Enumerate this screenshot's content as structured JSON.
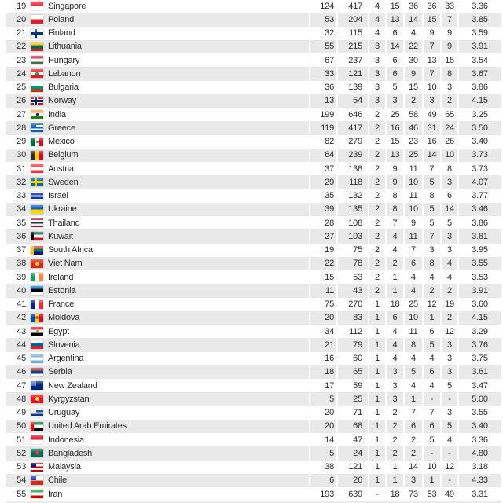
{
  "colors": {
    "row_stripe": "#e9e9e9",
    "row_plain": "#ffffff",
    "text": "#2b2b2b",
    "column_separator": "#ffffff"
  },
  "table": {
    "rows": [
      {
        "rank": 19,
        "country": "Singapore",
        "flag": {
          "type": "h",
          "stripes": [
            "#ED2939",
            "#FFFFFF"
          ]
        },
        "values": [
          "124",
          "417",
          "4",
          "15",
          "36",
          "36",
          "33",
          "3.36"
        ]
      },
      {
        "rank": 20,
        "country": "Poland",
        "flag": {
          "type": "h",
          "stripes": [
            "#FFFFFF",
            "#D22630"
          ]
        },
        "values": [
          "53",
          "204",
          "4",
          "13",
          "14",
          "15",
          "7",
          "3.85"
        ]
      },
      {
        "rank": 21,
        "country": "Finland",
        "flag": {
          "type": "cross",
          "bg": "#FFFFFF",
          "cross": "#003580"
        },
        "values": [
          "32",
          "115",
          "4",
          "6",
          "4",
          "9",
          "9",
          "3.59"
        ]
      },
      {
        "rank": 22,
        "country": "Lithuania",
        "flag": {
          "type": "h",
          "stripes": [
            "#FDB913",
            "#006A44",
            "#C1272D"
          ]
        },
        "values": [
          "55",
          "215",
          "3",
          "14",
          "22",
          "7",
          "9",
          "3.91"
        ]
      },
      {
        "rank": 23,
        "country": "Hungary",
        "flag": {
          "type": "h",
          "stripes": [
            "#CE2939",
            "#FFFFFF",
            "#477050"
          ]
        },
        "values": [
          "67",
          "237",
          "3",
          "6",
          "30",
          "13",
          "15",
          "3.54"
        ]
      },
      {
        "rank": 24,
        "country": "Lebanon",
        "flag": {
          "type": "h",
          "stripes": [
            "#EE161F",
            "#FFFFFF",
            "#EE161F"
          ],
          "dot": "#00A651",
          "dotSize": 4
        },
        "values": [
          "33",
          "121",
          "3",
          "6",
          "9",
          "7",
          "8",
          "3.67"
        ]
      },
      {
        "rank": 25,
        "country": "Bulgaria",
        "flag": {
          "type": "h",
          "stripes": [
            "#FFFFFF",
            "#00966E",
            "#D62612"
          ]
        },
        "values": [
          "36",
          "139",
          "3",
          "5",
          "15",
          "10",
          "3",
          "3.86"
        ]
      },
      {
        "rank": 26,
        "country": "Norway",
        "flag": {
          "type": "cross",
          "bg": "#BA0C2F",
          "cross": "#00205B",
          "outline": "#FFFFFF"
        },
        "values": [
          "13",
          "54",
          "3",
          "3",
          "2",
          "3",
          "2",
          "4.15"
        ]
      },
      {
        "rank": 27,
        "country": "India",
        "flag": {
          "type": "h",
          "stripes": [
            "#FF9933",
            "#FFFFFF",
            "#138808"
          ],
          "dot": "#000080",
          "dotSize": 3
        },
        "values": [
          "199",
          "646",
          "2",
          "25",
          "58",
          "49",
          "65",
          "3.25"
        ]
      },
      {
        "rank": 28,
        "country": "Greece",
        "flag": {
          "type": "h",
          "stripes": [
            "#0D5EAF",
            "#FFFFFF",
            "#0D5EAF",
            "#FFFFFF",
            "#0D5EAF"
          ],
          "canton": "#0D5EAF"
        },
        "values": [
          "119",
          "417",
          "2",
          "16",
          "46",
          "31",
          "24",
          "3.50"
        ]
      },
      {
        "rank": 29,
        "country": "Mexico",
        "flag": {
          "type": "v",
          "stripes": [
            "#006847",
            "#FFFFFF",
            "#CE1126"
          ],
          "dot": "#9C6B30",
          "dotSize": 3
        },
        "values": [
          "82",
          "279",
          "2",
          "15",
          "23",
          "16",
          "26",
          "3.40"
        ]
      },
      {
        "rank": 30,
        "country": "Belgium",
        "flag": {
          "type": "v",
          "stripes": [
            "#2D2926",
            "#FFCD00",
            "#C8102E"
          ]
        },
        "values": [
          "64",
          "239",
          "2",
          "13",
          "25",
          "14",
          "10",
          "3.73"
        ]
      },
      {
        "rank": 31,
        "country": "Austria",
        "flag": {
          "type": "h",
          "stripes": [
            "#EF3340",
            "#FFFFFF",
            "#EF3340"
          ]
        },
        "values": [
          "37",
          "138",
          "2",
          "9",
          "11",
          "7",
          "8",
          "3.73"
        ]
      },
      {
        "rank": 32,
        "country": "Sweden",
        "flag": {
          "type": "cross",
          "bg": "#006AA7",
          "cross": "#FECC02"
        },
        "values": [
          "29",
          "118",
          "2",
          "9",
          "10",
          "5",
          "3",
          "4.07"
        ]
      },
      {
        "rank": 33,
        "country": "Israel",
        "flag": {
          "type": "h",
          "stripes": [
            "#FFFFFF",
            "#0038B8",
            "#FFFFFF",
            "#0038B8",
            "#FFFFFF"
          ]
        },
        "values": [
          "35",
          "132",
          "2",
          "8",
          "11",
          "8",
          "6",
          "3.77"
        ]
      },
      {
        "rank": 34,
        "country": "Ukraine",
        "flag": {
          "type": "h",
          "stripes": [
            "#005BBB",
            "#FFD500"
          ]
        },
        "values": [
          "39",
          "135",
          "2",
          "8",
          "10",
          "5",
          "14",
          "3.46"
        ]
      },
      {
        "rank": 35,
        "country": "Thailand",
        "flag": {
          "type": "h",
          "stripes": [
            "#A51931",
            "#F4F5F8",
            "#2D2A4A",
            "#F4F5F8",
            "#A51931"
          ]
        },
        "values": [
          "28",
          "108",
          "2",
          "7",
          "9",
          "5",
          "5",
          "3.86"
        ]
      },
      {
        "rank": 36,
        "country": "Kuwait",
        "flag": {
          "type": "h",
          "stripes": [
            "#007A3D",
            "#FFFFFF",
            "#CE1126"
          ],
          "leftbar": "#000000"
        },
        "values": [
          "27",
          "103",
          "2",
          "4",
          "11",
          "7",
          "3",
          "3.81"
        ]
      },
      {
        "rank": 37,
        "country": "South Africa",
        "flag": {
          "type": "h",
          "stripes": [
            "#DE3831",
            "#007749",
            "#001489"
          ],
          "leftbar": "#FFB81C"
        },
        "values": [
          "19",
          "75",
          "2",
          "4",
          "7",
          "3",
          "3",
          "3.95"
        ]
      },
      {
        "rank": 38,
        "country": "Viet Nam",
        "flag": {
          "type": "solid",
          "color": "#DA251D",
          "dot": "#FFDE00",
          "dotSize": 5
        },
        "values": [
          "22",
          "78",
          "2",
          "2",
          "6",
          "8",
          "4",
          "3.55"
        ]
      },
      {
        "rank": 39,
        "country": "Ireland",
        "flag": {
          "type": "v",
          "stripes": [
            "#169B62",
            "#FFFFFF",
            "#FF883E"
          ]
        },
        "values": [
          "15",
          "53",
          "2",
          "1",
          "4",
          "4",
          "4",
          "3.53"
        ]
      },
      {
        "rank": 40,
        "country": "Estonia",
        "flag": {
          "type": "h",
          "stripes": [
            "#0072CE",
            "#000000",
            "#FFFFFF"
          ]
        },
        "values": [
          "11",
          "43",
          "2",
          "1",
          "4",
          "2",
          "2",
          "3.91"
        ]
      },
      {
        "rank": 41,
        "country": "France",
        "flag": {
          "type": "v",
          "stripes": [
            "#002395",
            "#FFFFFF",
            "#ED2939"
          ]
        },
        "values": [
          "75",
          "270",
          "1",
          "18",
          "25",
          "12",
          "19",
          "3.60"
        ]
      },
      {
        "rank": 42,
        "country": "Moldova",
        "flag": {
          "type": "v",
          "stripes": [
            "#0046AE",
            "#FFD200",
            "#CC092F"
          ],
          "dot": "#9C6B30",
          "dotSize": 4
        },
        "values": [
          "20",
          "83",
          "1",
          "6",
          "10",
          "1",
          "2",
          "4.15"
        ]
      },
      {
        "rank": 43,
        "country": "Egypt",
        "flag": {
          "type": "h",
          "stripes": [
            "#CE1126",
            "#FFFFFF",
            "#000000"
          ],
          "dot": "#C09300",
          "dotSize": 3
        },
        "values": [
          "34",
          "112",
          "1",
          "4",
          "11",
          "6",
          "12",
          "3.29"
        ]
      },
      {
        "rank": 44,
        "country": "Slovenia",
        "flag": {
          "type": "h",
          "stripes": [
            "#FFFFFF",
            "#005DA4",
            "#ED1C24"
          ]
        },
        "values": [
          "21",
          "79",
          "1",
          "4",
          "8",
          "5",
          "3",
          "3.76"
        ]
      },
      {
        "rank": 45,
        "country": "Argentina",
        "flag": {
          "type": "h",
          "stripes": [
            "#74ACDF",
            "#FFFFFF",
            "#74ACDF"
          ]
        },
        "values": [
          "16",
          "60",
          "1",
          "4",
          "4",
          "4",
          "3",
          "3.75"
        ]
      },
      {
        "rank": 46,
        "country": "Serbia",
        "flag": {
          "type": "h",
          "stripes": [
            "#C6363C",
            "#0C4076",
            "#FFFFFF"
          ]
        },
        "values": [
          "18",
          "65",
          "1",
          "3",
          "5",
          "6",
          "3",
          "3.61"
        ]
      },
      {
        "rank": 47,
        "country": "New Zealand",
        "flag": {
          "type": "solid",
          "color": "#00247D",
          "canton": "#5A74B8"
        },
        "values": [
          "17",
          "59",
          "1",
          "3",
          "4",
          "4",
          "5",
          "3.47"
        ]
      },
      {
        "rank": 48,
        "country": "Kyrgyzstan",
        "flag": {
          "type": "solid",
          "color": "#E8112D",
          "dot": "#FFEF00",
          "dotSize": 5
        },
        "values": [
          "5",
          "25",
          "1",
          "3",
          "1",
          "-",
          "-",
          "5.00"
        ]
      },
      {
        "rank": 49,
        "country": "Uruguay",
        "flag": {
          "type": "h",
          "stripes": [
            "#FFFFFF",
            "#0038A8",
            "#FFFFFF",
            "#0038A8",
            "#FFFFFF"
          ],
          "canton": "#F4F0DC"
        },
        "values": [
          "20",
          "71",
          "1",
          "2",
          "7",
          "7",
          "3",
          "3.55"
        ]
      },
      {
        "rank": 50,
        "country": "United Arab Emirates",
        "flag": {
          "type": "h",
          "stripes": [
            "#00732F",
            "#FFFFFF",
            "#000000"
          ],
          "leftbar": "#FF0000"
        },
        "values": [
          "20",
          "68",
          "1",
          "2",
          "6",
          "6",
          "5",
          "3.40"
        ]
      },
      {
        "rank": 51,
        "country": "Indonesia",
        "flag": {
          "type": "h",
          "stripes": [
            "#CE1126",
            "#FFFFFF"
          ]
        },
        "values": [
          "14",
          "47",
          "1",
          "2",
          "2",
          "5",
          "4",
          "3.36"
        ]
      },
      {
        "rank": 52,
        "country": "Bangladesh",
        "flag": {
          "type": "solid",
          "color": "#006A4E",
          "dot": "#F42A41",
          "dotSize": 5
        },
        "values": [
          "5",
          "24",
          "1",
          "2",
          "2",
          "-",
          "-",
          "4.80"
        ]
      },
      {
        "rank": 53,
        "country": "Malaysia",
        "flag": {
          "type": "h",
          "stripes": [
            "#CC0001",
            "#FFFFFF",
            "#CC0001",
            "#FFFFFF",
            "#CC0001"
          ],
          "canton": "#010066"
        },
        "values": [
          "38",
          "121",
          "1",
          "1",
          "14",
          "10",
          "12",
          "3.18"
        ]
      },
      {
        "rank": 54,
        "country": "Chile",
        "flag": {
          "type": "h",
          "stripes": [
            "#FFFFFF",
            "#D52B1E"
          ],
          "canton": "#0039A6"
        },
        "values": [
          "6",
          "26",
          "1",
          "1",
          "3",
          "1",
          "-",
          "4.33"
        ]
      },
      {
        "rank": 55,
        "country": "Iran",
        "flag": {
          "type": "h",
          "stripes": [
            "#239F40",
            "#FFFFFF",
            "#DA0000"
          ]
        },
        "values": [
          "193",
          "639",
          "-",
          "18",
          "73",
          "53",
          "49",
          "3.31"
        ]
      }
    ]
  }
}
